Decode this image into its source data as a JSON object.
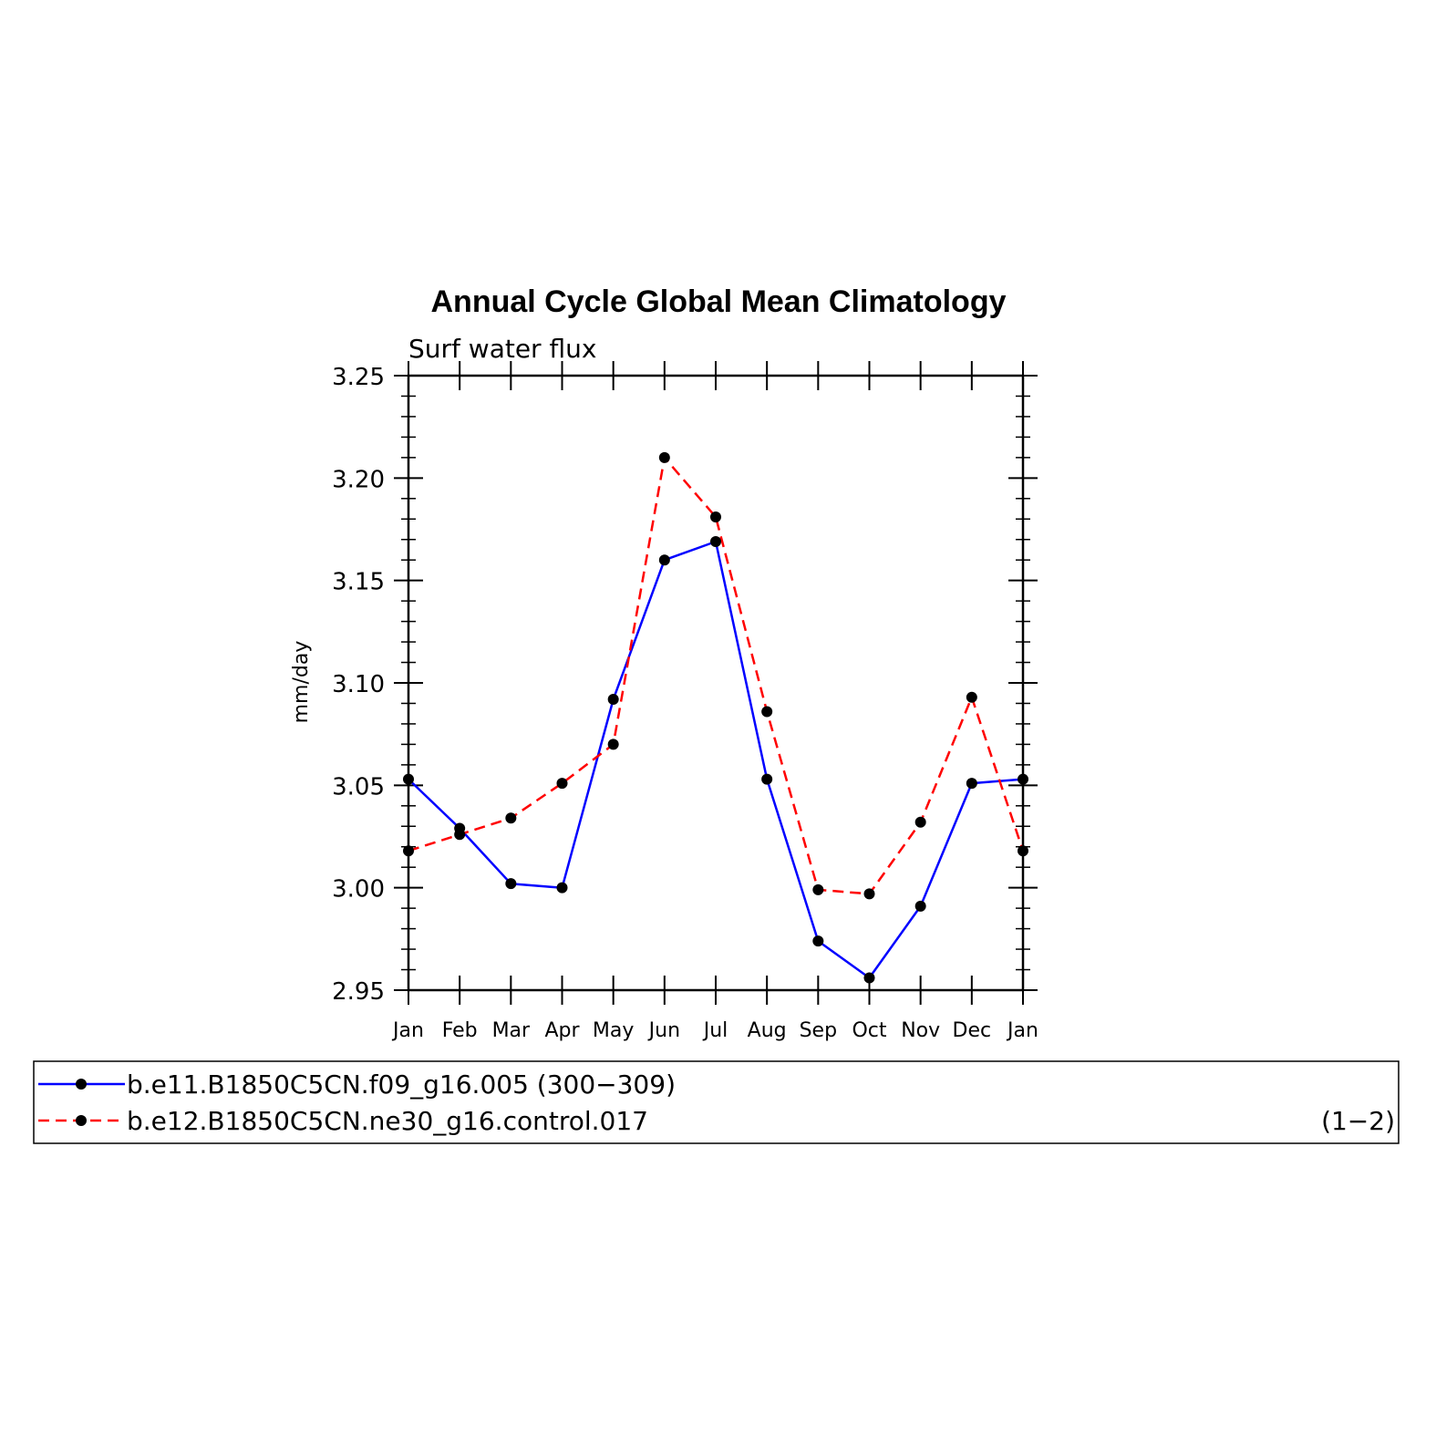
{
  "chart_data": {
    "type": "line",
    "title": "Annual Cycle Global Mean Climatology",
    "subtitle": "Surf water flux",
    "xlabel": "",
    "ylabel": "mm/day",
    "categories": [
      "Jan",
      "Feb",
      "Mar",
      "Apr",
      "May",
      "Jun",
      "Jul",
      "Aug",
      "Sep",
      "Oct",
      "Nov",
      "Dec",
      "Jan"
    ],
    "ylim": [
      2.95,
      3.25
    ],
    "yticks": [
      "2.95",
      "3.00",
      "3.05",
      "3.10",
      "3.15",
      "3.20",
      "3.25"
    ],
    "grid": false,
    "legend_placement": "bottom",
    "legend_note": "(1−2)",
    "series": [
      {
        "name": "b.e11.B1850C5CN.f09_g16.005 (300−309)",
        "color": "#0000ff",
        "style": "solid",
        "values": [
          3.053,
          3.029,
          3.002,
          3.0,
          3.092,
          3.16,
          3.169,
          3.053,
          2.974,
          2.956,
          2.991,
          3.051,
          3.053
        ]
      },
      {
        "name": "b.e12.B1850C5CN.ne30_g16.control.017",
        "color": "#ff0000",
        "style": "dashed",
        "values": [
          3.018,
          3.026,
          3.034,
          3.051,
          3.07,
          3.21,
          3.181,
          3.086,
          2.999,
          2.997,
          3.032,
          3.093,
          3.018
        ]
      }
    ]
  }
}
